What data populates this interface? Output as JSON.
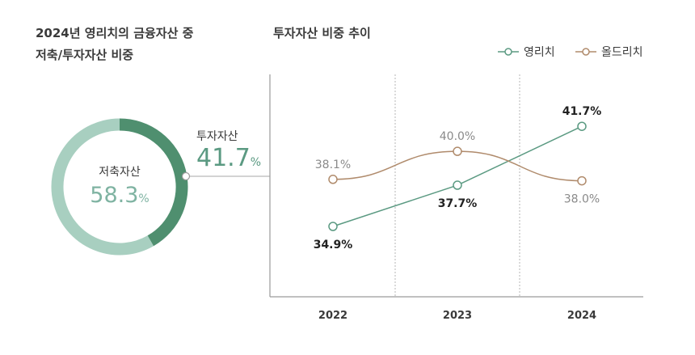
{
  "left_title": {
    "line1": "2024년 영리치의 금융자산 중",
    "line2": "저축/투자자산 비중"
  },
  "right_title": "투자자산 비중 추이",
  "donut": {
    "savings_label": "저축자산",
    "savings_value": "58.3",
    "invest_label": "투자자산",
    "invest_value": "41.7",
    "unit": "%"
  },
  "colors": {
    "young_rich": "#5b9a82",
    "old_rich": "#b08b6c",
    "savings_ring": "#a8cfc0",
    "invest_ring": "#4f8f6f"
  },
  "chart_data": [
    {
      "type": "pie",
      "title": "",
      "categories": [
        "저축자산",
        "투자자산"
      ],
      "values": [
        58.3,
        41.7
      ]
    },
    {
      "type": "line",
      "title": "투자자산 비중 추이",
      "xlabel": "",
      "ylabel": "",
      "categories": [
        "2022",
        "2023",
        "2024"
      ],
      "ylim": [
        30,
        45
      ],
      "legend_position": "top-right",
      "series": [
        {
          "name": "영리치",
          "values": [
            34.9,
            37.7,
            41.7
          ],
          "labels": [
            "34.9%",
            "37.7%",
            "41.7%"
          ]
        },
        {
          "name": "올드리치",
          "values": [
            38.1,
            40.0,
            38.0
          ],
          "labels": [
            "38.1%",
            "40.0%",
            "38.0%"
          ]
        }
      ]
    }
  ]
}
